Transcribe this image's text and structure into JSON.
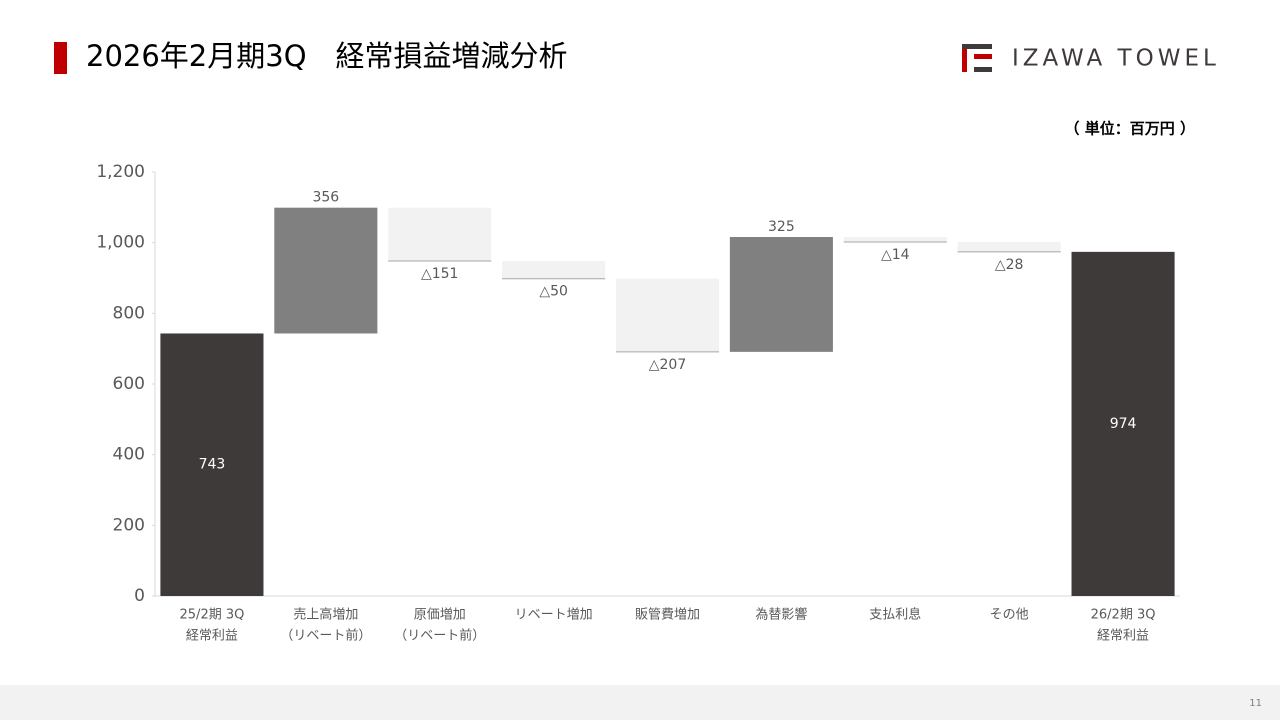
{
  "logo": "IZAWA TOWEL",
  "page_number": 11,
  "chart_data": {
    "type": "waterfall",
    "title": "2026年2月期3Q　経常損益増減分析",
    "unit_label": "（ 単位：百万円 ）",
    "categories": [
      [
        "25/2期 3Q",
        "経常利益"
      ],
      [
        "売上高増加",
        "（リベート前）"
      ],
      [
        "原価増加",
        "（リベート前）"
      ],
      [
        "リベート増加"
      ],
      [
        "販管費増加"
      ],
      [
        "為替影響"
      ],
      [
        "支払利息"
      ],
      [
        "その他"
      ],
      [
        "26/2期 3Q",
        "経常利益"
      ]
    ],
    "values": [
      743,
      356,
      -151,
      -50,
      -207,
      325,
      -14,
      -28,
      974
    ],
    "value_labels": [
      "743",
      "356",
      "△151",
      "△50",
      "△207",
      "325",
      "△14",
      "△28",
      "974"
    ],
    "measure": [
      "absolute",
      "relative",
      "relative",
      "relative",
      "relative",
      "relative",
      "relative",
      "relative",
      "absolute"
    ],
    "colors": {
      "total": "#3e3a39",
      "increase": "#808080",
      "decrease": "#f2f2f2"
    },
    "ylim": [
      0,
      1200
    ],
    "yticks": [
      0,
      200,
      400,
      600,
      800,
      {
        "value": 1000,
        "label": "1,000"
      },
      {
        "value": 1200,
        "label": "1,200"
      }
    ]
  }
}
